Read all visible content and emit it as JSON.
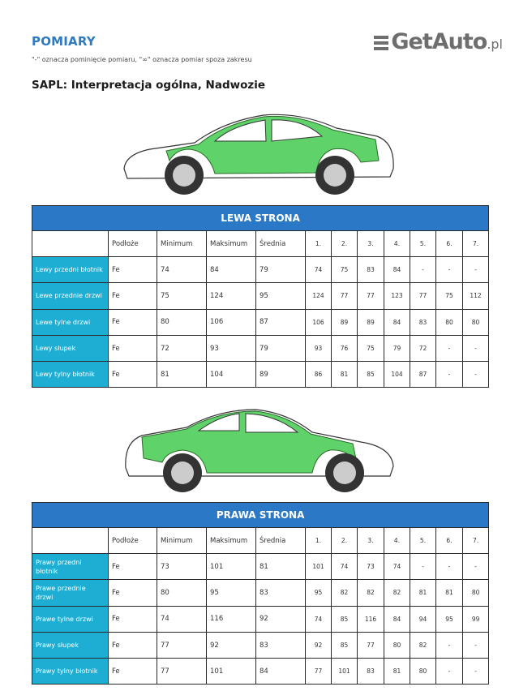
{
  "title": "POMIARY",
  "note": "\"-\" oznacza pominięcie pomiaru, \"∞\" oznacza pomiar spoza zakresu",
  "subtitle": "SAPL: Interpretacja ogólna, Nadwozie",
  "colors": {
    "title": "#2f7ac0",
    "table_header": "#2b78c6",
    "row_label": "#1eaed4",
    "panel_green": "#5fd36a"
  },
  "columns": [
    "Podłoże",
    "Minimum",
    "Maksimum",
    "Średnia",
    "1.",
    "2.",
    "3.",
    "4.",
    "5.",
    "6.",
    "7."
  ],
  "left": {
    "heading": "LEWA STRONA",
    "rows": [
      {
        "label": "Lewy przedni błotnik",
        "values": [
          "Fe",
          "74",
          "84",
          "79",
          "74",
          "75",
          "83",
          "84",
          "-",
          "-",
          "-"
        ]
      },
      {
        "label": "Lewe przednie drzwi",
        "values": [
          "Fe",
          "75",
          "124",
          "95",
          "124",
          "77",
          "77",
          "123",
          "77",
          "75",
          "112"
        ]
      },
      {
        "label": "Lewe tylne drzwi",
        "values": [
          "Fe",
          "80",
          "106",
          "87",
          "106",
          "89",
          "89",
          "84",
          "83",
          "80",
          "80"
        ]
      },
      {
        "label": "Lewy słupek",
        "values": [
          "Fe",
          "72",
          "93",
          "79",
          "93",
          "76",
          "75",
          "79",
          "72",
          "-",
          "-"
        ]
      },
      {
        "label": "Lewy tylny błotnik",
        "values": [
          "Fe",
          "81",
          "104",
          "89",
          "86",
          "81",
          "85",
          "104",
          "87",
          "-",
          "-"
        ]
      }
    ]
  },
  "right": {
    "heading": "PRAWA STRONA",
    "rows": [
      {
        "label": "Prawy przedni błotnik",
        "values": [
          "Fe",
          "73",
          "101",
          "81",
          "101",
          "74",
          "73",
          "74",
          "-",
          "-",
          "-"
        ]
      },
      {
        "label": "Prawe przednie drzwi",
        "values": [
          "Fe",
          "80",
          "95",
          "83",
          "95",
          "82",
          "82",
          "82",
          "81",
          "81",
          "80"
        ]
      },
      {
        "label": "Prawe tylne drzwi",
        "values": [
          "Fe",
          "74",
          "116",
          "92",
          "74",
          "85",
          "116",
          "84",
          "94",
          "95",
          "99"
        ]
      },
      {
        "label": "Prawy słupek",
        "values": [
          "Fe",
          "77",
          "92",
          "83",
          "92",
          "85",
          "77",
          "80",
          "82",
          "-",
          "-"
        ]
      },
      {
        "label": "Prawy tylny błotnik",
        "values": [
          "Fe",
          "77",
          "101",
          "84",
          "77",
          "101",
          "83",
          "81",
          "80",
          "-",
          "-"
        ]
      }
    ]
  },
  "watermark": {
    "text": "GetAuto",
    "suffix": ".pl"
  }
}
